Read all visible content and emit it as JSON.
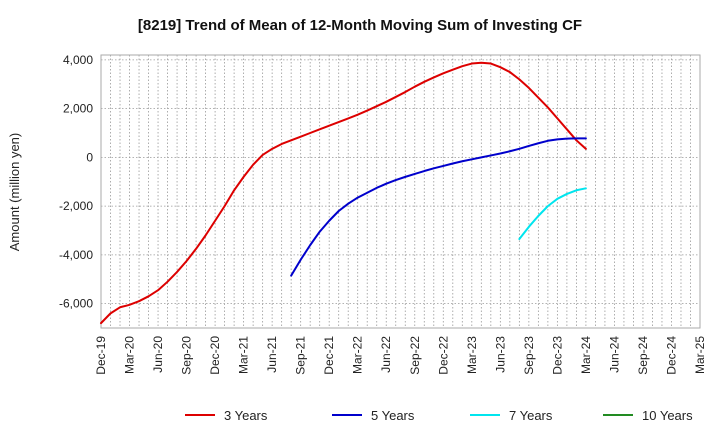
{
  "chart_data": {
    "type": "line",
    "title": "[8219]  Trend of Mean of 12-Month Moving Sum of Investing CF",
    "xlabel": "",
    "ylabel": "Amount (million yen)",
    "ylim": [
      -7000,
      4200
    ],
    "yticks": [
      4000,
      2000,
      0,
      -2000,
      -4000,
      -6000
    ],
    "ytick_labels": [
      "4,000",
      "2,000",
      "0",
      "-2,000",
      "-4,000",
      "-6,000"
    ],
    "x_range": [
      "2019-12",
      "2025-03"
    ],
    "xtick_labels": [
      "Dec-19",
      "Mar-20",
      "Jun-20",
      "Sep-20",
      "Dec-20",
      "Mar-21",
      "Jun-21",
      "Sep-21",
      "Dec-21",
      "Mar-22",
      "Jun-22",
      "Sep-22",
      "Dec-22",
      "Mar-23",
      "Jun-23",
      "Sep-23",
      "Dec-23",
      "Mar-24",
      "Jun-24",
      "Sep-24",
      "Dec-24",
      "Mar-25"
    ],
    "grid": true,
    "legend_position": "bottom",
    "series": [
      {
        "name": "3 Years",
        "color": "#dd0000",
        "x": [
          "2019-12",
          "2020-01",
          "2020-02",
          "2020-03",
          "2020-04",
          "2020-05",
          "2020-06",
          "2020-07",
          "2020-08",
          "2020-09",
          "2020-10",
          "2020-11",
          "2020-12",
          "2021-01",
          "2021-02",
          "2021-03",
          "2021-04",
          "2021-05",
          "2021-06",
          "2021-07",
          "2021-08",
          "2021-09",
          "2021-10",
          "2021-11",
          "2021-12",
          "2022-01",
          "2022-02",
          "2022-03",
          "2022-04",
          "2022-05",
          "2022-06",
          "2022-07",
          "2022-08",
          "2022-09",
          "2022-10",
          "2022-11",
          "2022-12",
          "2023-01",
          "2023-02",
          "2023-03",
          "2023-04",
          "2023-05",
          "2023-06",
          "2023-07",
          "2023-08",
          "2023-09",
          "2023-10",
          "2023-11",
          "2023-12",
          "2024-01",
          "2024-02",
          "2024-03"
        ],
        "values": [
          -6800,
          -6400,
          -6150,
          -6050,
          -5900,
          -5700,
          -5450,
          -5100,
          -4700,
          -4250,
          -3750,
          -3200,
          -2600,
          -2000,
          -1350,
          -800,
          -300,
          100,
          350,
          550,
          700,
          850,
          1000,
          1150,
          1300,
          1450,
          1600,
          1750,
          1920,
          2100,
          2280,
          2480,
          2680,
          2900,
          3100,
          3280,
          3450,
          3600,
          3740,
          3850,
          3880,
          3850,
          3700,
          3500,
          3200,
          2850,
          2450,
          2050,
          1600,
          1150,
          700,
          350
        ]
      },
      {
        "name": "5 Years",
        "color": "#0000cc",
        "x": [
          "2021-08",
          "2021-09",
          "2021-10",
          "2021-11",
          "2021-12",
          "2022-01",
          "2022-02",
          "2022-03",
          "2022-04",
          "2022-05",
          "2022-06",
          "2022-07",
          "2022-08",
          "2022-09",
          "2022-10",
          "2022-11",
          "2022-12",
          "2023-01",
          "2023-02",
          "2023-03",
          "2023-04",
          "2023-05",
          "2023-06",
          "2023-07",
          "2023-08",
          "2023-09",
          "2023-10",
          "2023-11",
          "2023-12",
          "2024-01",
          "2024-02",
          "2024-03"
        ],
        "values": [
          -4850,
          -4200,
          -3600,
          -3050,
          -2600,
          -2200,
          -1900,
          -1650,
          -1450,
          -1250,
          -1080,
          -930,
          -800,
          -680,
          -560,
          -450,
          -350,
          -250,
          -160,
          -80,
          0,
          80,
          160,
          250,
          350,
          470,
          580,
          680,
          740,
          770,
          780,
          780
        ]
      },
      {
        "name": "7 Years",
        "color": "#00e5ee",
        "x": [
          "2023-08",
          "2023-09",
          "2023-10",
          "2023-11",
          "2023-12",
          "2024-01",
          "2024-02",
          "2024-03"
        ],
        "values": [
          -3350,
          -2850,
          -2400,
          -2000,
          -1700,
          -1500,
          -1350,
          -1270
        ]
      },
      {
        "name": "10 Years",
        "color": "#228b22",
        "x": [],
        "values": []
      }
    ]
  }
}
